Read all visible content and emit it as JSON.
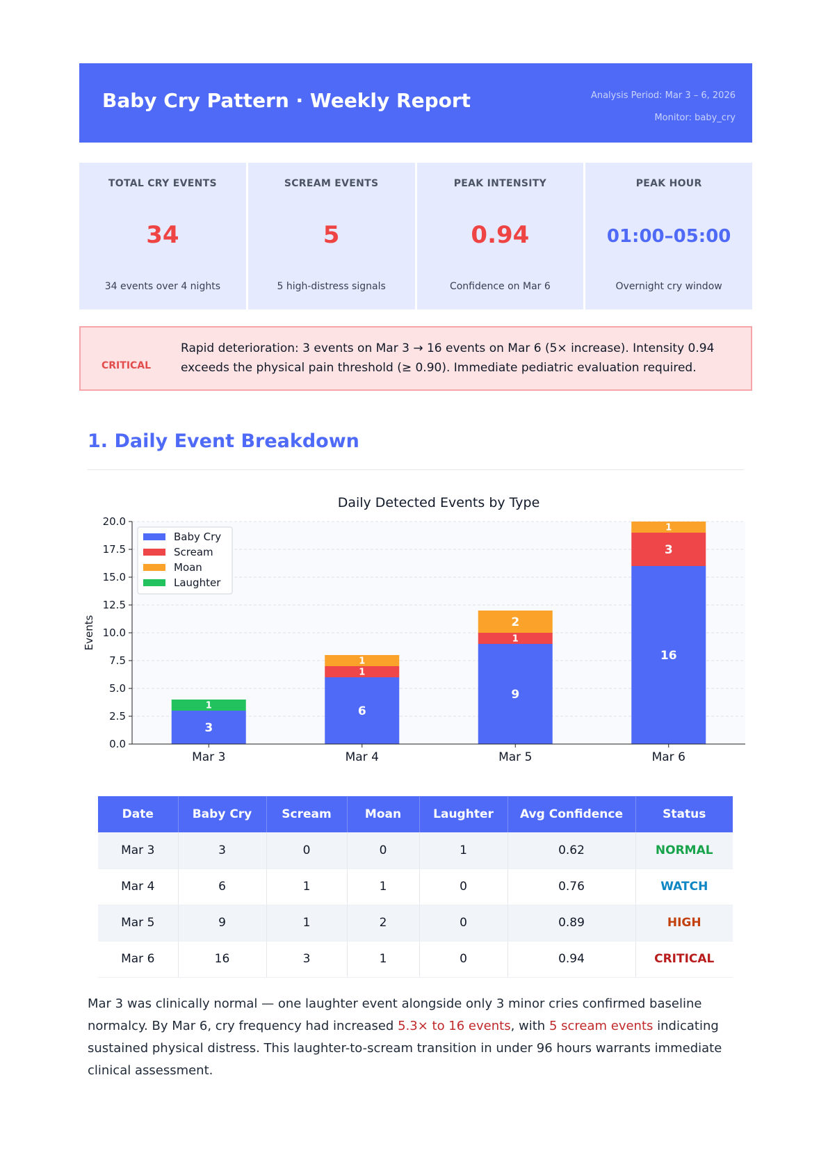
{
  "header": {
    "title": "Baby Cry Pattern · Weekly Report",
    "period": "Analysis Period: Mar 3 – 6, 2026",
    "monitor": "Monitor: baby_cry"
  },
  "kpis": [
    {
      "label": "TOTAL CRY EVENTS",
      "value": "34",
      "sub": "34 events over 4 nights",
      "color": "#ef4444"
    },
    {
      "label": "SCREAM EVENTS",
      "value": "5",
      "sub": "5 high-distress signals",
      "color": "#ef4444"
    },
    {
      "label": "PEAK INTENSITY",
      "value": "0.94",
      "sub": "Confidence on Mar 6",
      "color": "#ef4444"
    },
    {
      "label": "PEAK HOUR",
      "value": "01:00–05:00",
      "sub": "Overnight cry window",
      "color": "#4f6af7"
    }
  ],
  "alert": {
    "tag": "CRITICAL",
    "message": "Rapid deterioration: 3 events on Mar 3 → 16 events on Mar 6 (5× increase). Intensity 0.94 exceeds the physical pain threshold (≥ 0.90). Immediate pediatric evaluation required."
  },
  "section": {
    "title": "1. Daily Event Breakdown"
  },
  "chart_data": {
    "type": "bar",
    "stacked": true,
    "title": "Daily Detected Events by Type",
    "xlabel": "",
    "ylabel": "Events",
    "ylim": [
      0,
      20
    ],
    "yticks": [
      "0.0",
      "2.5",
      "5.0",
      "7.5",
      "10.0",
      "12.5",
      "15.0",
      "17.5",
      "20.0"
    ],
    "categories": [
      "Mar 3",
      "Mar 4",
      "Mar 5",
      "Mar 6"
    ],
    "series": [
      {
        "name": "Baby Cry",
        "values": [
          3,
          6,
          9,
          16
        ],
        "color": "#4f6af7"
      },
      {
        "name": "Scream",
        "values": [
          0,
          1,
          1,
          3
        ],
        "color": "#ef4649"
      },
      {
        "name": "Moan",
        "values": [
          0,
          1,
          2,
          1
        ],
        "color": "#fba22a"
      },
      {
        "name": "Laughter",
        "values": [
          1,
          0,
          0,
          0
        ],
        "color": "#22c35e"
      }
    ],
    "legend": "top-left",
    "grid": true
  },
  "table": {
    "headers": [
      "Date",
      "Baby Cry",
      "Scream",
      "Moan",
      "Laughter",
      "Avg Confidence",
      "Status"
    ],
    "rows": [
      [
        "Mar 3",
        "3",
        "0",
        "0",
        "1",
        "0.62",
        "NORMAL"
      ],
      [
        "Mar 4",
        "6",
        "1",
        "1",
        "0",
        "0.76",
        "WATCH"
      ],
      [
        "Mar 5",
        "9",
        "1",
        "2",
        "0",
        "0.89",
        "HIGH"
      ],
      [
        "Mar 6",
        "16",
        "3",
        "1",
        "0",
        "0.94",
        "CRITICAL"
      ]
    ],
    "status_colors": {
      "NORMAL": "#16a34a",
      "WATCH": "#0e86c4",
      "HIGH": "#c2410c",
      "CRITICAL": "#b91c1c"
    }
  },
  "summary": {
    "p1": "Mar 3 was clinically normal — one laughter event alongside only 3 minor cries confirmed baseline normalcy. By Mar 6, cry frequency had increased ",
    "h1": "5.3× to 16 events",
    "p2": ", with ",
    "h2": "5 scream events",
    "p3": " indicating sustained physical distress. This laughter-to-scream transition in under 96 hours warrants immediate clinical assessment."
  }
}
